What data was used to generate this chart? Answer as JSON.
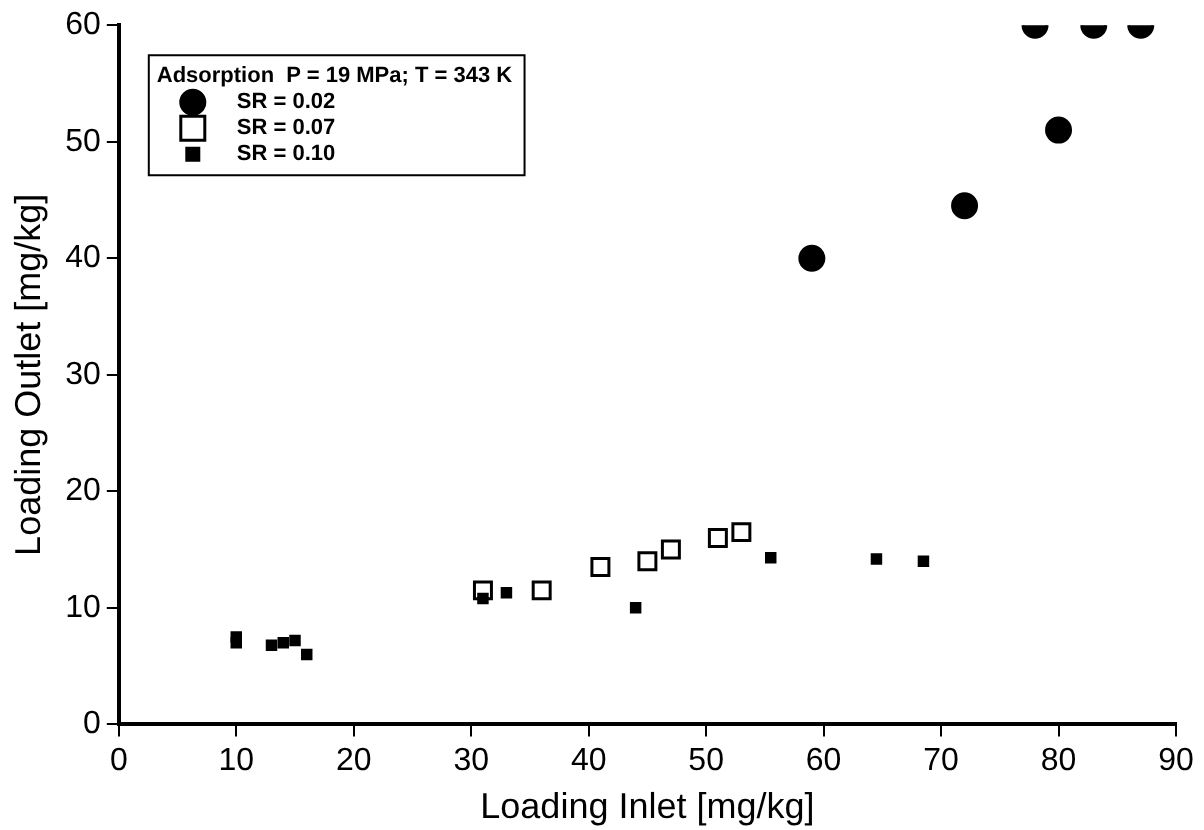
{
  "chart_data": {
    "type": "scatter",
    "xlabel": "Loading Inlet [mg/kg]",
    "ylabel": "Loading Outlet [mg/kg]",
    "legend_title": "Adsorption  P = 19 MPa; T = 343 K",
    "legend": "top left",
    "grid": false,
    "xlim": [
      0,
      90
    ],
    "xticks": [
      0,
      10,
      20,
      30,
      40,
      50,
      60,
      70,
      80,
      90
    ],
    "ylim": [
      0,
      60
    ],
    "yticks": [
      0,
      10,
      20,
      30,
      40,
      50,
      60
    ],
    "series": [
      {
        "name": "SR = 0.02",
        "color": "#000000",
        "marker": "circle",
        "x": [
          59,
          72,
          78,
          80,
          83,
          87
        ],
        "values": [
          40,
          44.5,
          60,
          51,
          60,
          60
        ]
      },
      {
        "name": "SR = 0.07",
        "color": "#000000",
        "marker": "square",
        "x": [
          31,
          36,
          41,
          45,
          47,
          51,
          53
        ],
        "values": [
          11.5,
          11.5,
          13.5,
          14,
          15,
          16,
          16.5
        ]
      },
      {
        "name": "SR = 0.10",
        "color": "#000000",
        "marker": "square",
        "x": [
          10,
          10,
          13,
          14,
          15,
          16,
          31,
          33,
          44,
          55.5,
          64.5,
          68.5
        ],
        "values": [
          7,
          7.5,
          6.8,
          7,
          7.2,
          6,
          10.8,
          11.3,
          10,
          14.3,
          14.2,
          14
        ]
      }
    ]
  }
}
